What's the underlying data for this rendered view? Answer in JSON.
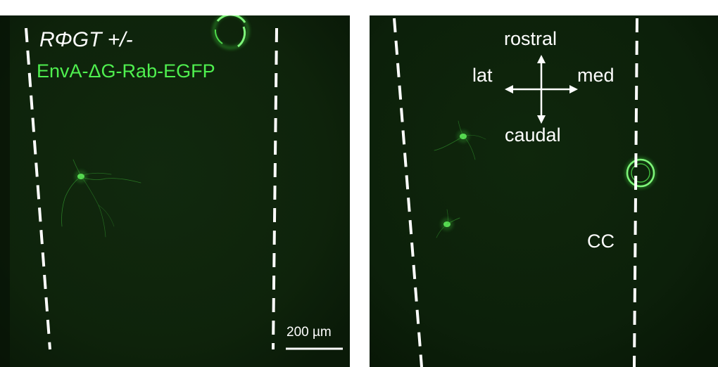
{
  "panels": {
    "left": {
      "genotype_label": "RΦGT +/-",
      "virus_label": "EnvA-ΔG-Rab-EGFP",
      "scale_bar_label": "200 µm"
    },
    "right": {
      "orientation": {
        "rostral": "rostral",
        "caudal": "caudal",
        "lateral": "lat",
        "medial": "med"
      },
      "region_label": "CC"
    }
  },
  "colors": {
    "tissue_background": "#0c1f0a",
    "egfp_signal": "#4ff04f",
    "annotation": "#ffffff"
  }
}
